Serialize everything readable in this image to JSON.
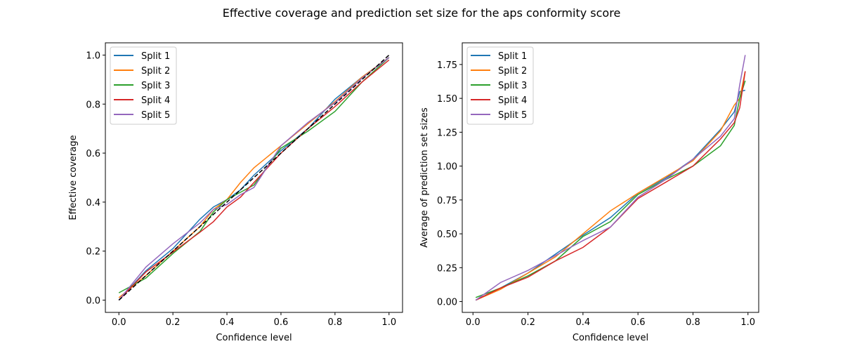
{
  "title": "Effective coverage and prediction set size for the aps conformity score",
  "colors": [
    "#1f77b4",
    "#ff7f0e",
    "#2ca02c",
    "#d62728",
    "#9467bd"
  ],
  "chart_data": [
    {
      "type": "line",
      "xlabel": "Confidence level",
      "ylabel": "Effective coverage",
      "xlim": [
        -0.05,
        1.05
      ],
      "ylim": [
        -0.05,
        1.05
      ],
      "xticks": [
        "0.0",
        "0.2",
        "0.4",
        "0.6",
        "0.8",
        "1.0"
      ],
      "yticks": [
        "0.0",
        "0.2",
        "0.4",
        "0.6",
        "0.8",
        "1.0"
      ],
      "legend": "top-left",
      "x": [
        0,
        0.1,
        0.2,
        0.3,
        0.35,
        0.4,
        0.45,
        0.5,
        0.6,
        0.7,
        0.8,
        0.9,
        1.0
      ],
      "series": [
        {
          "name": "Split 1",
          "values": [
            0,
            0.12,
            0.21,
            0.33,
            0.38,
            0.41,
            0.45,
            0.51,
            0.61,
            0.7,
            0.82,
            0.91,
            0.99
          ]
        },
        {
          "name": "Split 2",
          "values": [
            0.01,
            0.1,
            0.2,
            0.3,
            0.37,
            0.41,
            0.48,
            0.54,
            0.63,
            0.72,
            0.81,
            0.91,
            0.99
          ]
        },
        {
          "name": "Split 3",
          "values": [
            0.03,
            0.09,
            0.19,
            0.28,
            0.36,
            0.41,
            0.44,
            0.47,
            0.62,
            0.69,
            0.77,
            0.89,
            0.99
          ]
        },
        {
          "name": "Split 4",
          "values": [
            0,
            0.115,
            0.196,
            0.277,
            0.32,
            0.38,
            0.42,
            0.48,
            0.6,
            0.7,
            0.79,
            0.89,
            0.98
          ]
        },
        {
          "name": "Split 5",
          "values": [
            0,
            0.135,
            0.23,
            0.315,
            0.37,
            0.39,
            0.43,
            0.46,
            0.63,
            0.725,
            0.806,
            0.906,
            0.99
          ]
        }
      ],
      "reference_line": {
        "style": "dashed",
        "color": "#000000",
        "x": [
          0,
          1
        ],
        "y": [
          0,
          1
        ]
      }
    },
    {
      "type": "line",
      "xlabel": "Confidence level",
      "ylabel": "Average of prediction set sizes",
      "xlim": [
        -0.039,
        1.039
      ],
      "ylim": [
        -0.08,
        1.91
      ],
      "xticks": [
        "0.0",
        "0.2",
        "0.4",
        "0.6",
        "0.8",
        "1.0"
      ],
      "yticks": [
        "0.00",
        "0.25",
        "0.50",
        "0.75",
        "1.00",
        "1.25",
        "1.50",
        "1.75"
      ],
      "legend": "top-left",
      "x": [
        0.01,
        0.1,
        0.2,
        0.3,
        0.4,
        0.5,
        0.6,
        0.7,
        0.8,
        0.9,
        0.95,
        0.97,
        0.99
      ],
      "series": [
        {
          "name": "Split 1",
          "values": [
            0.01,
            0.1,
            0.21,
            0.35,
            0.49,
            0.62,
            0.8,
            0.91,
            1.05,
            1.27,
            1.4,
            1.55,
            1.56
          ]
        },
        {
          "name": "Split 2",
          "values": [
            0.01,
            0.09,
            0.21,
            0.33,
            0.5,
            0.67,
            0.8,
            0.92,
            1.04,
            1.26,
            1.45,
            1.5,
            1.7
          ]
        },
        {
          "name": "Split 3",
          "values": [
            0.03,
            0.1,
            0.19,
            0.3,
            0.48,
            0.59,
            0.79,
            0.9,
            1.0,
            1.15,
            1.3,
            1.5,
            1.63
          ]
        },
        {
          "name": "Split 4",
          "values": [
            0.01,
            0.1,
            0.18,
            0.3,
            0.4,
            0.55,
            0.76,
            0.88,
            1.0,
            1.2,
            1.32,
            1.43,
            1.7
          ]
        },
        {
          "name": "Split 5",
          "values": [
            0.01,
            0.14,
            0.23,
            0.34,
            0.45,
            0.55,
            0.77,
            0.9,
            1.05,
            1.22,
            1.35,
            1.6,
            1.82
          ]
        }
      ]
    }
  ]
}
